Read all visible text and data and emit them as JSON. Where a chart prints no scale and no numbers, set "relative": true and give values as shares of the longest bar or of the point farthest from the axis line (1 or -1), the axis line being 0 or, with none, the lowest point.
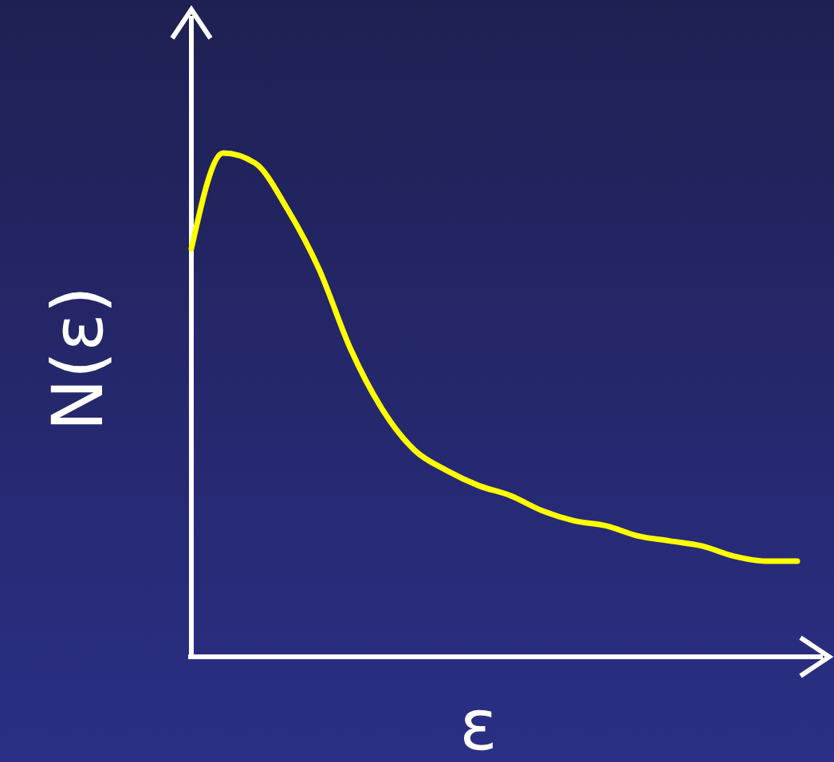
{
  "chart_data": {
    "type": "line",
    "relative": true,
    "xlabel": "ε",
    "ylabel": "N(ε)",
    "categories": [
      null,
      null,
      null,
      null,
      null,
      null,
      null,
      null,
      null,
      null,
      null,
      null,
      null,
      null,
      null,
      null,
      null,
      null,
      null,
      null
    ],
    "series": [
      {
        "color": "#ffff00",
        "values": [
          0.81,
          1,
          0.98,
          0.89,
          0.77,
          0.61,
          0.49,
          0.41,
          0.37,
          0.34,
          0.32,
          0.29,
          0.27,
          0.26,
          0.24,
          0.23,
          0.22,
          0.2,
          0.19,
          0.19
        ]
      }
    ],
    "marker": "none",
    "line_style": "solid",
    "grid": false
  }
}
